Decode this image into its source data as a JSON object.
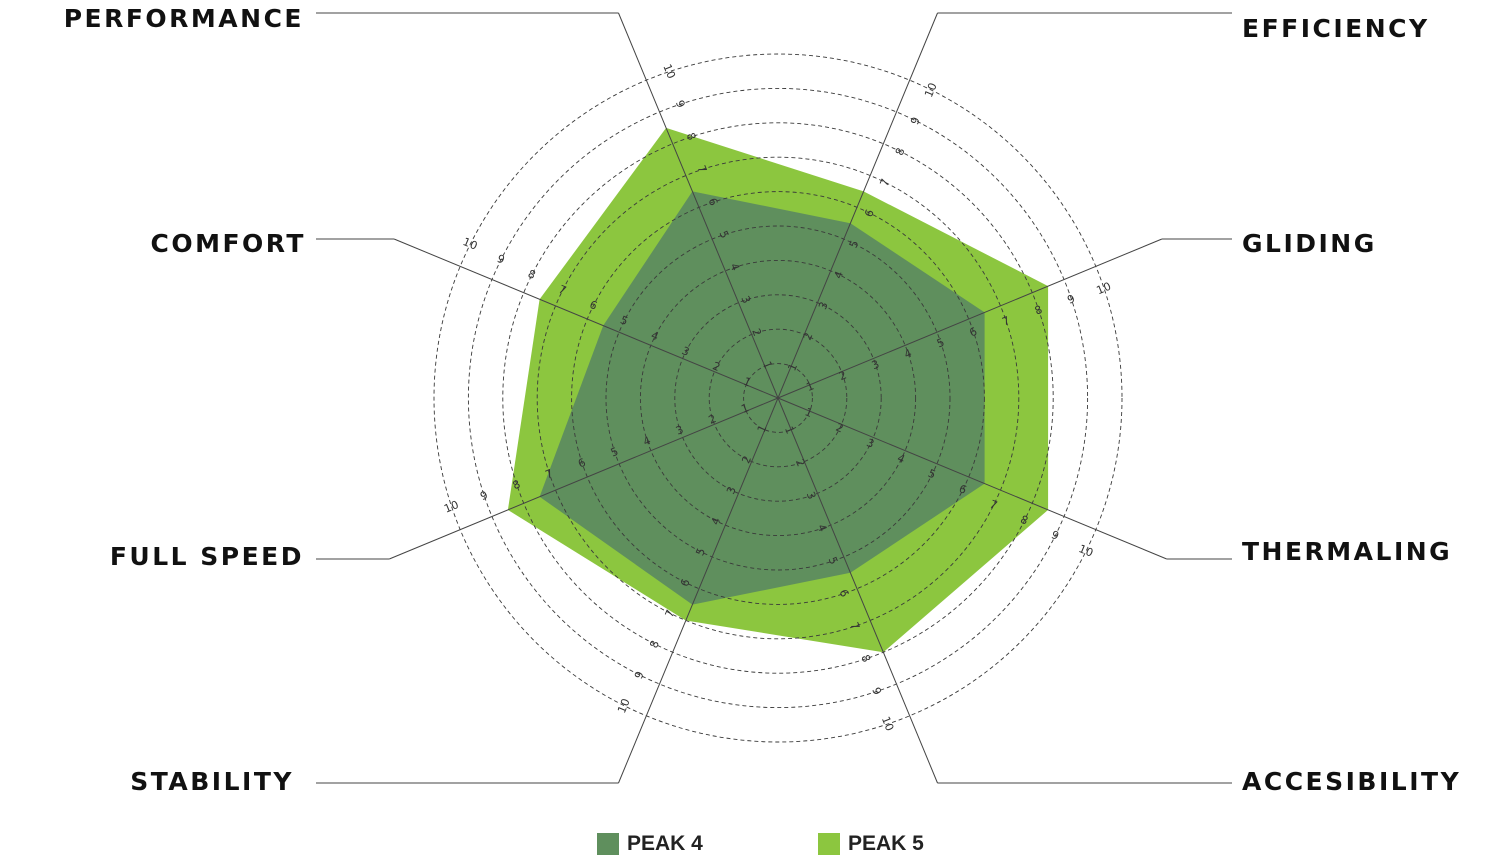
{
  "chart_data": {
    "type": "radar",
    "axes": [
      "EFFICIENCY",
      "GLIDING",
      "THERMALING",
      "ACCESIBILITY",
      "STABILITY",
      "FULL SPEED",
      "COMFORT",
      "PERFORMANCE"
    ],
    "rlim": [
      0,
      10
    ],
    "rings": [
      1,
      2,
      3,
      4,
      5,
      6,
      7,
      8,
      9,
      10
    ],
    "tick_labels": [
      "1",
      "2",
      "3",
      "4",
      "5",
      "6",
      "7",
      "8",
      "9",
      "10"
    ],
    "grid": true,
    "grid_style": "dashed",
    "legend_position": "bottom",
    "series": [
      {
        "name": "PEAK 5",
        "color": "#8cc63f",
        "values": [
          6.5,
          8.5,
          8.5,
          8.0,
          7.0,
          8.5,
          7.5,
          8.5
        ]
      },
      {
        "name": "PEAK 4",
        "color": "#5f8f5d",
        "values": [
          5.5,
          6.5,
          6.5,
          5.5,
          6.5,
          7.5,
          5.5,
          6.5
        ]
      }
    ]
  },
  "legend": [
    {
      "label": "PEAK 4",
      "color": "#5f8f5d"
    },
    {
      "label": "PEAK 5",
      "color": "#8cc63f"
    }
  ]
}
